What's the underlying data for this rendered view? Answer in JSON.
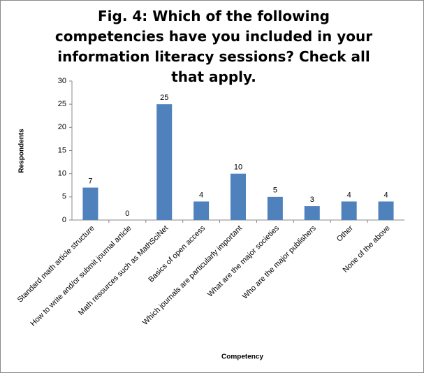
{
  "chart_data": {
    "type": "bar",
    "title": "Fig. 4: Which of the following competencies have you included in your information literacy sessions? Check all that apply.",
    "x_label": "Competency",
    "y_label": "Respondents",
    "categories": [
      "Standard math article structure",
      "How to write and/or submit journal article",
      "Math resources such as MathSciNet",
      "Basics of open access",
      "Which journals are particularly important",
      "What are the major societies",
      "Who are the major publishers",
      "Other",
      "None of the above"
    ],
    "values": [
      7,
      0,
      25,
      4,
      10,
      5,
      3,
      4,
      4
    ],
    "color": "#4f81bd",
    "ylim": [
      0,
      30
    ],
    "yticks": [
      0,
      5,
      10,
      15,
      20,
      25,
      30
    ],
    "grid": false
  }
}
